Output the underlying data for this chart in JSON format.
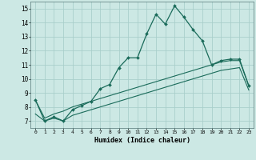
{
  "title": "",
  "xlabel": "Humidex (Indice chaleur)",
  "ylabel": "",
  "background_color": "#cce8e4",
  "grid_color": "#aacfcb",
  "line_color": "#1a6b5a",
  "xlim": [
    -0.5,
    23.5
  ],
  "ylim": [
    6.5,
    15.5
  ],
  "xticks": [
    0,
    1,
    2,
    3,
    4,
    5,
    6,
    7,
    8,
    9,
    10,
    11,
    12,
    13,
    14,
    15,
    16,
    17,
    18,
    19,
    20,
    21,
    22,
    23
  ],
  "yticks": [
    7,
    8,
    9,
    10,
    11,
    12,
    13,
    14,
    15
  ],
  "line1_x": [
    0,
    1,
    2,
    3,
    4,
    5,
    6,
    7,
    8,
    9,
    10,
    11,
    12,
    13,
    14,
    15,
    16,
    17,
    18,
    19,
    20,
    21,
    22,
    23
  ],
  "line1_y": [
    8.5,
    7.0,
    7.3,
    7.0,
    7.8,
    8.1,
    8.4,
    9.3,
    9.6,
    10.8,
    11.5,
    11.5,
    13.2,
    14.6,
    13.9,
    15.2,
    14.4,
    13.5,
    12.7,
    11.0,
    11.3,
    11.4,
    11.4,
    9.5
  ],
  "line2_x": [
    0,
    1,
    2,
    3,
    4,
    5,
    6,
    7,
    8,
    9,
    10,
    11,
    12,
    13,
    14,
    15,
    16,
    17,
    18,
    19,
    20,
    21,
    22,
    23
  ],
  "line2_y": [
    8.5,
    7.2,
    7.5,
    7.7,
    8.0,
    8.2,
    8.4,
    8.6,
    8.8,
    9.0,
    9.2,
    9.4,
    9.6,
    9.8,
    10.0,
    10.2,
    10.4,
    10.6,
    10.8,
    11.0,
    11.2,
    11.3,
    11.3,
    9.5
  ],
  "line3_x": [
    0,
    1,
    2,
    3,
    4,
    5,
    6,
    7,
    8,
    9,
    10,
    11,
    12,
    13,
    14,
    15,
    16,
    17,
    18,
    19,
    20,
    21,
    22,
    23
  ],
  "line3_y": [
    7.5,
    7.0,
    7.2,
    7.0,
    7.4,
    7.6,
    7.8,
    8.0,
    8.2,
    8.4,
    8.6,
    8.8,
    9.0,
    9.2,
    9.4,
    9.6,
    9.8,
    10.0,
    10.2,
    10.4,
    10.6,
    10.7,
    10.8,
    9.2
  ]
}
